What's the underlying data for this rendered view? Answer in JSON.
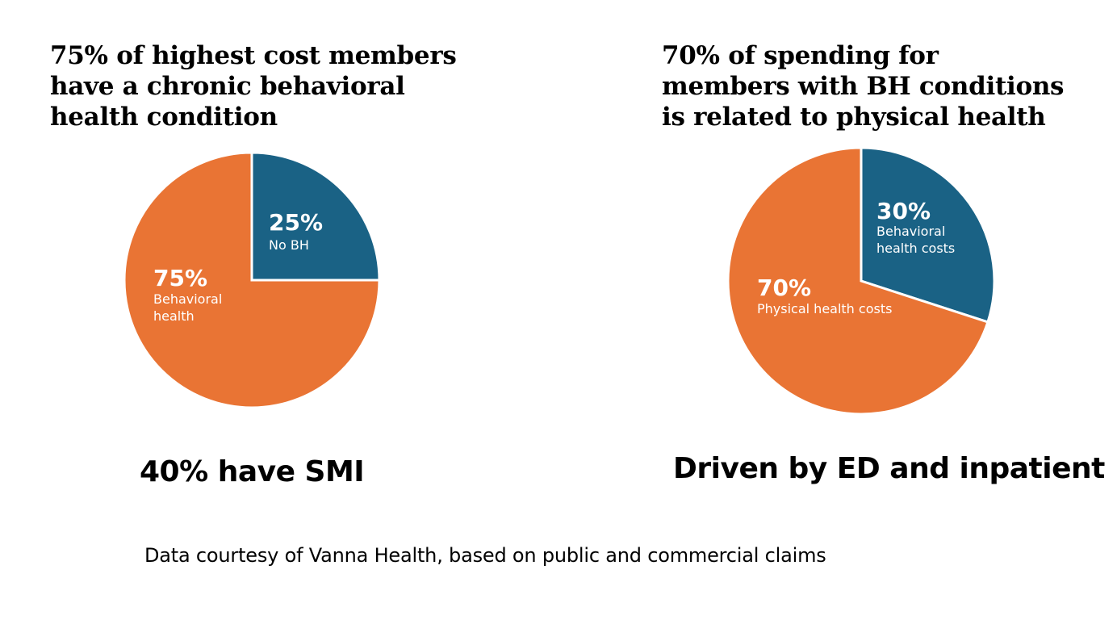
{
  "chart_data": [
    {
      "type": "pie",
      "title_lines": [
        "75% of highest cost members",
        "have a chronic behavioral",
        "health condition"
      ],
      "slices": [
        {
          "label_lines": [
            "No BH"
          ],
          "value": 25,
          "pct_label": "25%",
          "color": "#1a6285"
        },
        {
          "label_lines": [
            "Behavioral",
            "health"
          ],
          "value": 75,
          "pct_label": "75%",
          "color": "#e97434"
        }
      ],
      "summary": "40% have SMI"
    },
    {
      "type": "pie",
      "title_lines": [
        "70% of spending for",
        "members with BH conditions",
        "is related to physical health"
      ],
      "slices": [
        {
          "label_lines": [
            "Behavioral",
            "health costs"
          ],
          "value": 30,
          "pct_label": "30%",
          "color": "#1a6285"
        },
        {
          "label_lines": [
            "Physical health costs"
          ],
          "value": 70,
          "pct_label": "70%",
          "color": "#e97434"
        }
      ],
      "summary": "Driven by ED and inpatient"
    }
  ],
  "footnote": "Data courtesy of Vanna Health, based on public and commercial claims"
}
